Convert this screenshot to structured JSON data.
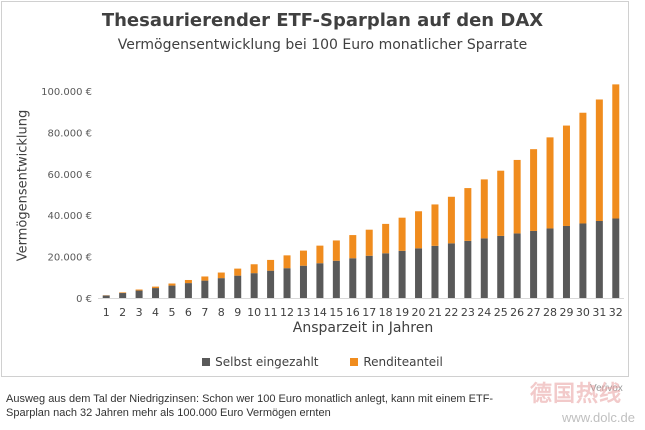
{
  "chart_data": {
    "type": "bar",
    "stacked": true,
    "title": "Thesaurierender ETF-Sparplan auf den DAX",
    "subtitle": "Vermögensentwicklung bei 100 Euro monatlicher Sparrate",
    "xlabel": "Ansparzeit in Jahren",
    "ylabel": "Vermögensentwicklung",
    "ylim": [
      0,
      100000
    ],
    "yticks": [
      0,
      20000,
      40000,
      60000,
      80000,
      100000
    ],
    "ytick_labels": [
      "0 €",
      "20.000 €",
      "40.000 €",
      "60.000 €",
      "80.000 €",
      "100.000 €"
    ],
    "grid": false,
    "legend_position": "bottom",
    "categories": [
      "1",
      "2",
      "3",
      "4",
      "5",
      "6",
      "7",
      "8",
      "9",
      "10",
      "11",
      "12",
      "13",
      "14",
      "15",
      "16",
      "17",
      "18",
      "19",
      "20",
      "21",
      "22",
      "23",
      "24",
      "25",
      "26",
      "27",
      "28",
      "29",
      "30",
      "31",
      "32"
    ],
    "series": [
      {
        "name": "Selbst eingezahlt",
        "color": "#595959",
        "values": [
          1200,
          2400,
          3600,
          4800,
          6000,
          7200,
          8400,
          9600,
          10800,
          12000,
          13200,
          14400,
          15600,
          16800,
          18000,
          19200,
          20400,
          21600,
          22800,
          24000,
          25200,
          26400,
          27600,
          28800,
          30000,
          31200,
          32400,
          33600,
          34800,
          36000,
          37200,
          38400
        ]
      },
      {
        "name": "Renditeanteil",
        "color": "#f08c1e",
        "values": [
          100,
          300,
          500,
          700,
          1000,
          1500,
          2000,
          2700,
          3400,
          4300,
          5200,
          6200,
          7300,
          8500,
          9800,
          11200,
          12600,
          14200,
          16000,
          17900,
          20000,
          22500,
          25500,
          28500,
          31500,
          35500,
          39500,
          44000,
          48500,
          53500,
          58700,
          64800
        ]
      }
    ]
  },
  "caption": {
    "line1": "Ausweg aus dem Tal der Niedrigzinsen: Schon wer 100 Euro monatlich anlegt, kann mit einem ETF-",
    "line2": "Sparplan nach 32 Jahren mehr als 100.000 Euro Vermögen ernten"
  },
  "watermark": {
    "brand": "德国热线",
    "url": "www.dolc.de",
    "source": "Verivox"
  }
}
